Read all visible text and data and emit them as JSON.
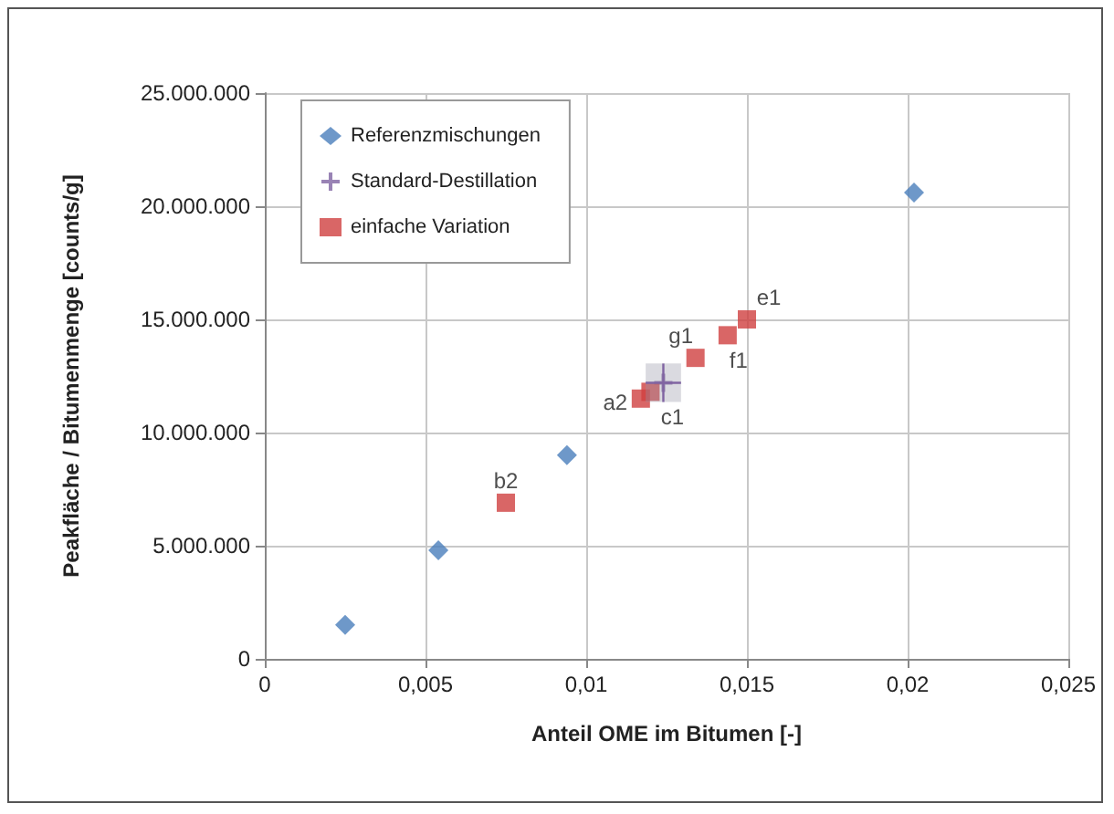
{
  "chart_data": {
    "type": "scatter",
    "xlabel": "Anteil OME im Bitumen [-]",
    "ylabel": "Peakfläche / Bitumenmenge [counts/g]",
    "xlim": [
      0,
      0.025
    ],
    "xticks": [
      0,
      {
        "value": 0.005,
        "label": "0,005"
      },
      {
        "value": 0.01,
        "label": "0,01"
      },
      {
        "value": 0.015,
        "label": "0,015"
      },
      {
        "value": 0.02,
        "label": "0,02"
      },
      {
        "value": 0.025,
        "label": "0,025"
      }
    ],
    "ylim": [
      0,
      25000000
    ],
    "yticks": [
      0,
      {
        "value": 5000000,
        "label": "5.000.000"
      },
      {
        "value": 10000000,
        "label": "10.000.000"
      },
      {
        "value": 15000000,
        "label": "15.000.000"
      },
      {
        "value": 20000000,
        "label": "20.000.000"
      },
      {
        "value": 25000000,
        "label": "25.000.000"
      }
    ],
    "grid": true,
    "legend": "top left",
    "series": [
      {
        "name": "Referenzmischungen",
        "color": "#4a7ebb",
        "marker": "diamond",
        "x": [
          0.0025,
          0.0054,
          0.0094,
          0.0202
        ],
        "values": [
          1500000,
          4800000,
          9000000,
          20600000
        ]
      },
      {
        "name": "Standard-Destillation",
        "color": "#8064a2",
        "marker": "cross",
        "x": [
          0.0124
        ],
        "values": [
          12200000
        ],
        "errors": [
          850000
        ],
        "xerrors": [
          0.00055
        ]
      },
      {
        "name": "einfache Variation",
        "color": "#d04040",
        "marker": "square",
        "x": [
          0.0075,
          0.0117,
          0.012,
          0.0134,
          0.0144,
          0.015
        ],
        "values": [
          6900000,
          11500000,
          11800000,
          13300000,
          14300000,
          15000000
        ],
        "value_labels": [
          "b2",
          "a2",
          "c1",
          "g1",
          "f1",
          "e1"
        ]
      }
    ]
  }
}
